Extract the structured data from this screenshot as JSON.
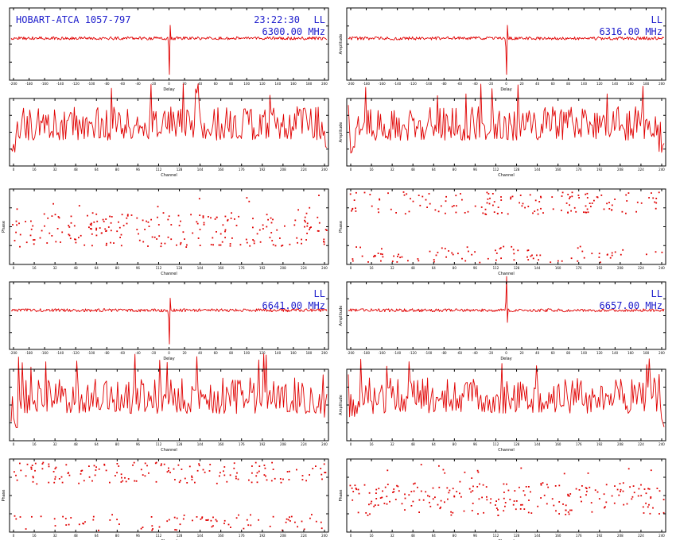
{
  "colors": {
    "trace": "#e00000",
    "annotation": "#1d1dcc",
    "axis": "#000000",
    "background": "#ffffff"
  },
  "header": {
    "source": "HOBART-ATCA 1057-797",
    "time": "23:22:30",
    "polarisation": "LL"
  },
  "chart_data": [
    {
      "id": "p1",
      "kind": "delay",
      "type": "line",
      "freq": "6300.00 MHz",
      "pol": "LL",
      "xlabel": "Delay",
      "ylabel": "",
      "spike": -1,
      "peak_pos": 0.5,
      "xticks": [
        "-200",
        "-180",
        "-160",
        "-140",
        "-120",
        "-100",
        "-80",
        "-60",
        "-40",
        "-20",
        "0",
        "20",
        "40",
        "60",
        "80",
        "100",
        "120",
        "140",
        "160",
        "180",
        "200"
      ]
    },
    {
      "id": "p2",
      "kind": "delay",
      "type": "line",
      "freq": "6316.00 MHz",
      "pol": "LL",
      "xlabel": "Delay",
      "ylabel": "Amplitude",
      "spike": -1,
      "peak_pos": 0.5,
      "xticks": [
        "-200",
        "-180",
        "-160",
        "-140",
        "-120",
        "-100",
        "-80",
        "-60",
        "-40",
        "-20",
        "0",
        "20",
        "40",
        "60",
        "80",
        "100",
        "120",
        "140",
        "160",
        "180",
        "200"
      ]
    },
    {
      "id": "p3",
      "kind": "amp",
      "type": "line",
      "xlabel": "Channel",
      "ylabel": "",
      "seed": 11,
      "xticks": [
        "0",
        "16",
        "32",
        "48",
        "64",
        "80",
        "96",
        "112",
        "128",
        "144",
        "160",
        "176",
        "192",
        "208",
        "224",
        "240"
      ]
    },
    {
      "id": "p4",
      "kind": "amp",
      "type": "line",
      "xlabel": "Channel",
      "ylabel": "Amplitude",
      "seed": 23,
      "xticks": [
        "0",
        "16",
        "32",
        "48",
        "64",
        "80",
        "96",
        "112",
        "128",
        "144",
        "160",
        "176",
        "192",
        "208",
        "224",
        "240"
      ]
    },
    {
      "id": "p5",
      "kind": "phase",
      "type": "scatter",
      "xlabel": "Channel",
      "ylabel": "Phase",
      "seed": 37,
      "pattern": "mid",
      "xticks": [
        "0",
        "16",
        "32",
        "48",
        "64",
        "80",
        "96",
        "112",
        "128",
        "144",
        "160",
        "176",
        "192",
        "208",
        "224",
        "240"
      ]
    },
    {
      "id": "p6",
      "kind": "phase",
      "type": "scatter",
      "xlabel": "Channel",
      "ylabel": "Phase",
      "seed": 41,
      "pattern": "wrap",
      "xticks": [
        "0",
        "16",
        "32",
        "48",
        "64",
        "80",
        "96",
        "112",
        "128",
        "144",
        "160",
        "176",
        "192",
        "208",
        "224",
        "240"
      ]
    },
    {
      "id": "p7",
      "kind": "delay",
      "type": "line",
      "freq": "6641.00 MHz",
      "pol": "LL",
      "xlabel": "Delay",
      "ylabel": "",
      "spike": -1,
      "peak_pos": 0.5,
      "xticks": [
        "-200",
        "-180",
        "-160",
        "-140",
        "-120",
        "-100",
        "-80",
        "-60",
        "-40",
        "-20",
        "0",
        "20",
        "40",
        "60",
        "80",
        "100",
        "120",
        "140",
        "160",
        "180",
        "200"
      ]
    },
    {
      "id": "p8",
      "kind": "delay",
      "type": "line",
      "freq": "6657.00 MHz",
      "pol": "LL",
      "xlabel": "Delay",
      "ylabel": "Amplitude",
      "spike": 1,
      "peak_pos": 0.5,
      "xticks": [
        "-200",
        "-180",
        "-160",
        "-140",
        "-120",
        "-100",
        "-80",
        "-60",
        "-40",
        "-20",
        "0",
        "20",
        "40",
        "60",
        "80",
        "100",
        "120",
        "140",
        "160",
        "180",
        "200"
      ]
    },
    {
      "id": "p9",
      "kind": "amp",
      "type": "line",
      "xlabel": "Channel",
      "ylabel": "",
      "seed": 53,
      "xticks": [
        "0",
        "16",
        "32",
        "48",
        "64",
        "80",
        "96",
        "112",
        "128",
        "144",
        "160",
        "176",
        "192",
        "208",
        "224",
        "240"
      ]
    },
    {
      "id": "p10",
      "kind": "amp",
      "type": "line",
      "xlabel": "Channel",
      "ylabel": "Amplitude",
      "seed": 67,
      "xticks": [
        "0",
        "16",
        "32",
        "48",
        "64",
        "80",
        "96",
        "112",
        "128",
        "144",
        "160",
        "176",
        "192",
        "208",
        "224",
        "240"
      ]
    },
    {
      "id": "p11",
      "kind": "phase",
      "type": "scatter",
      "xlabel": "Channel",
      "ylabel": "Phase",
      "seed": 71,
      "pattern": "wrap",
      "xticks": [
        "0",
        "16",
        "32",
        "48",
        "64",
        "80",
        "96",
        "112",
        "128",
        "144",
        "160",
        "176",
        "192",
        "208",
        "224",
        "240"
      ]
    },
    {
      "id": "p12",
      "kind": "phase",
      "type": "scatter",
      "xlabel": "Channel",
      "ylabel": "Phase",
      "seed": 83,
      "pattern": "mid",
      "xticks": [
        "0",
        "16",
        "32",
        "48",
        "64",
        "80",
        "96",
        "112",
        "128",
        "144",
        "160",
        "176",
        "192",
        "208",
        "224",
        "240"
      ]
    }
  ]
}
